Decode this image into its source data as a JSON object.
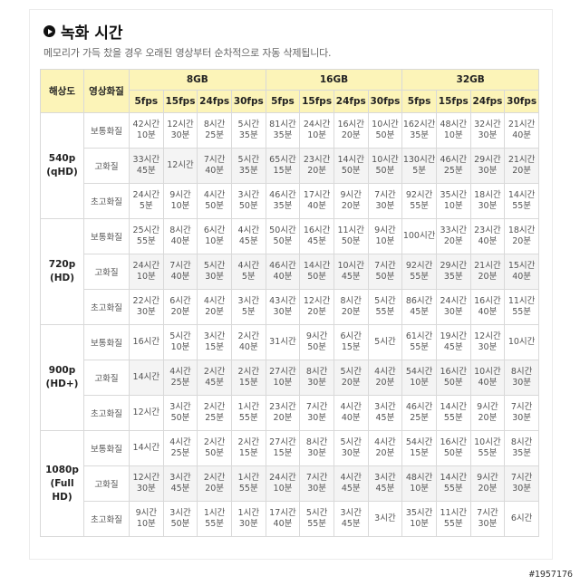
{
  "title": "녹화 시간",
  "subtitle": "메모리가 가득 찼을 경우 오래된 영상부터 순차적으로 자동 삭제됩니다.",
  "watermark": "#1957176",
  "headers": {
    "resolution": "해상도",
    "quality": "영상화질",
    "capacities": [
      "8GB",
      "16GB",
      "32GB"
    ],
    "fps": [
      "5fps",
      "15fps",
      "24fps",
      "30fps"
    ]
  },
  "groups": [
    {
      "res": "540p",
      "sub": "(qHD)",
      "rows": [
        {
          "q": "보통화질",
          "v": [
            [
              "42시간",
              "10분"
            ],
            [
              "12시간",
              "30분"
            ],
            [
              "8시간",
              "25분"
            ],
            [
              "5시간",
              "35분"
            ],
            [
              "81시간",
              "35분"
            ],
            [
              "24시간",
              "10분"
            ],
            [
              "16시간",
              "20분"
            ],
            [
              "10시간",
              "50분"
            ],
            [
              "162시간",
              "35분"
            ],
            [
              "48시간",
              "10분"
            ],
            [
              "32시간",
              "30분"
            ],
            [
              "21시간",
              "40분"
            ]
          ]
        },
        {
          "q": "고화질",
          "v": [
            [
              "33시간",
              "45분"
            ],
            [
              "12시간",
              ""
            ],
            [
              "7시간",
              "40분"
            ],
            [
              "5시간",
              "35분"
            ],
            [
              "65시간",
              "15분"
            ],
            [
              "23시간",
              "20분"
            ],
            [
              "14시간",
              "50분"
            ],
            [
              "10시간",
              "50분"
            ],
            [
              "130시간",
              "5분"
            ],
            [
              "46시간",
              "25분"
            ],
            [
              "29시간",
              "30분"
            ],
            [
              "21시간",
              "20분"
            ]
          ]
        },
        {
          "q": "초고화질",
          "v": [
            [
              "24시간",
              "5분"
            ],
            [
              "9시간",
              "10분"
            ],
            [
              "4시간",
              "50분"
            ],
            [
              "3시간",
              "50분"
            ],
            [
              "46시간",
              "35분"
            ],
            [
              "17시간",
              "40분"
            ],
            [
              "9시간",
              "20분"
            ],
            [
              "7시간",
              "30분"
            ],
            [
              "92시간",
              "55분"
            ],
            [
              "35시간",
              "10분"
            ],
            [
              "18시간",
              "30분"
            ],
            [
              "14시간",
              "55분"
            ]
          ]
        }
      ]
    },
    {
      "res": "720p",
      "sub": "(HD)",
      "rows": [
        {
          "q": "보통화질",
          "v": [
            [
              "25시간",
              "55분"
            ],
            [
              "8시간",
              "40분"
            ],
            [
              "6시간",
              "10분"
            ],
            [
              "4시간",
              "45분"
            ],
            [
              "50시간",
              "50분"
            ],
            [
              "16시간",
              "45분"
            ],
            [
              "11시간",
              "50분"
            ],
            [
              "9시간",
              "10분"
            ],
            [
              "100시간",
              ""
            ],
            [
              "33시간",
              "20분"
            ],
            [
              "23시간",
              "40분"
            ],
            [
              "18시간",
              "20분"
            ]
          ]
        },
        {
          "q": "고화질",
          "v": [
            [
              "24시간",
              "10분"
            ],
            [
              "7시간",
              "40분"
            ],
            [
              "5시간",
              "30분"
            ],
            [
              "4시간",
              "5분"
            ],
            [
              "46시간",
              "40분"
            ],
            [
              "14시간",
              "50분"
            ],
            [
              "10시간",
              "45분"
            ],
            [
              "7시간",
              "50분"
            ],
            [
              "92시간",
              "55분"
            ],
            [
              "29시간",
              "35분"
            ],
            [
              "21시간",
              "20분"
            ],
            [
              "15시간",
              "40분"
            ]
          ]
        },
        {
          "q": "초고화질",
          "v": [
            [
              "22시간",
              "30분"
            ],
            [
              "6시간",
              "20분"
            ],
            [
              "4시간",
              "20분"
            ],
            [
              "3시간",
              "5분"
            ],
            [
              "43시간",
              "30분"
            ],
            [
              "12시간",
              "20분"
            ],
            [
              "8시간",
              "20분"
            ],
            [
              "5시간",
              "55분"
            ],
            [
              "86시간",
              "45분"
            ],
            [
              "24시간",
              "30분"
            ],
            [
              "16시간",
              "40분"
            ],
            [
              "11시간",
              "55분"
            ]
          ]
        }
      ]
    },
    {
      "res": "900p",
      "sub": "(HD+)",
      "rows": [
        {
          "q": "보통화질",
          "v": [
            [
              "16시간",
              ""
            ],
            [
              "5시간",
              "10분"
            ],
            [
              "3시간",
              "15분"
            ],
            [
              "2시간",
              "40분"
            ],
            [
              "31시간",
              ""
            ],
            [
              "9시간",
              "50분"
            ],
            [
              "6시간",
              "15분"
            ],
            [
              "5시간",
              ""
            ],
            [
              "61시간",
              "55분"
            ],
            [
              "19시간",
              "45분"
            ],
            [
              "12시간",
              "30분"
            ],
            [
              "10시간",
              ""
            ]
          ]
        },
        {
          "q": "고화질",
          "v": [
            [
              "14시간",
              ""
            ],
            [
              "4시간",
              "25분"
            ],
            [
              "2시간",
              "45분"
            ],
            [
              "2시간",
              "15분"
            ],
            [
              "27시간",
              "10분"
            ],
            [
              "8시간",
              "30분"
            ],
            [
              "5시간",
              "20분"
            ],
            [
              "4시간",
              "20분"
            ],
            [
              "54시간",
              "10분"
            ],
            [
              "16시간",
              "50분"
            ],
            [
              "10시간",
              "40분"
            ],
            [
              "8시간",
              "30분"
            ]
          ]
        },
        {
          "q": "초고화질",
          "v": [
            [
              "12시간",
              ""
            ],
            [
              "3시간",
              "50분"
            ],
            [
              "2시간",
              "25분"
            ],
            [
              "1시간",
              "55분"
            ],
            [
              "23시간",
              "20분"
            ],
            [
              "7시간",
              "30분"
            ],
            [
              "4시간",
              "40분"
            ],
            [
              "3시간",
              "45분"
            ],
            [
              "46시간",
              "25분"
            ],
            [
              "14시간",
              "55분"
            ],
            [
              "9시간",
              "20분"
            ],
            [
              "7시간",
              "30분"
            ]
          ]
        }
      ]
    },
    {
      "res": "1080p",
      "sub": "(Full HD)",
      "rows": [
        {
          "q": "보통화질",
          "v": [
            [
              "14시간",
              ""
            ],
            [
              "4시간",
              "25분"
            ],
            [
              "2시간",
              "50분"
            ],
            [
              "2시간",
              "15분"
            ],
            [
              "27시간",
              "15분"
            ],
            [
              "8시간",
              "30분"
            ],
            [
              "5시간",
              "30분"
            ],
            [
              "4시간",
              "20분"
            ],
            [
              "54시간",
              "15분"
            ],
            [
              "16시간",
              "50분"
            ],
            [
              "10시간",
              "55분"
            ],
            [
              "8시간",
              "35분"
            ]
          ]
        },
        {
          "q": "고화질",
          "v": [
            [
              "12시간",
              "30분"
            ],
            [
              "3시간",
              "45분"
            ],
            [
              "2시간",
              "20분"
            ],
            [
              "1시간",
              "55분"
            ],
            [
              "24시간",
              "10분"
            ],
            [
              "7시간",
              "30분"
            ],
            [
              "4시간",
              "45분"
            ],
            [
              "3시간",
              "45분"
            ],
            [
              "48시간",
              "10분"
            ],
            [
              "14시간",
              "55분"
            ],
            [
              "9시간",
              "20분"
            ],
            [
              "7시간",
              "30분"
            ]
          ]
        },
        {
          "q": "초고화질",
          "v": [
            [
              "9시간",
              "10분"
            ],
            [
              "3시간",
              "50분"
            ],
            [
              "1시간",
              "55분"
            ],
            [
              "1시간",
              "30분"
            ],
            [
              "17시간",
              "40분"
            ],
            [
              "5시간",
              "55분"
            ],
            [
              "3시간",
              "45분"
            ],
            [
              "3시간",
              ""
            ],
            [
              "35시간",
              "10분"
            ],
            [
              "11시간",
              "55분"
            ],
            [
              "7시간",
              "30분"
            ],
            [
              "6시간",
              ""
            ]
          ]
        }
      ]
    }
  ]
}
